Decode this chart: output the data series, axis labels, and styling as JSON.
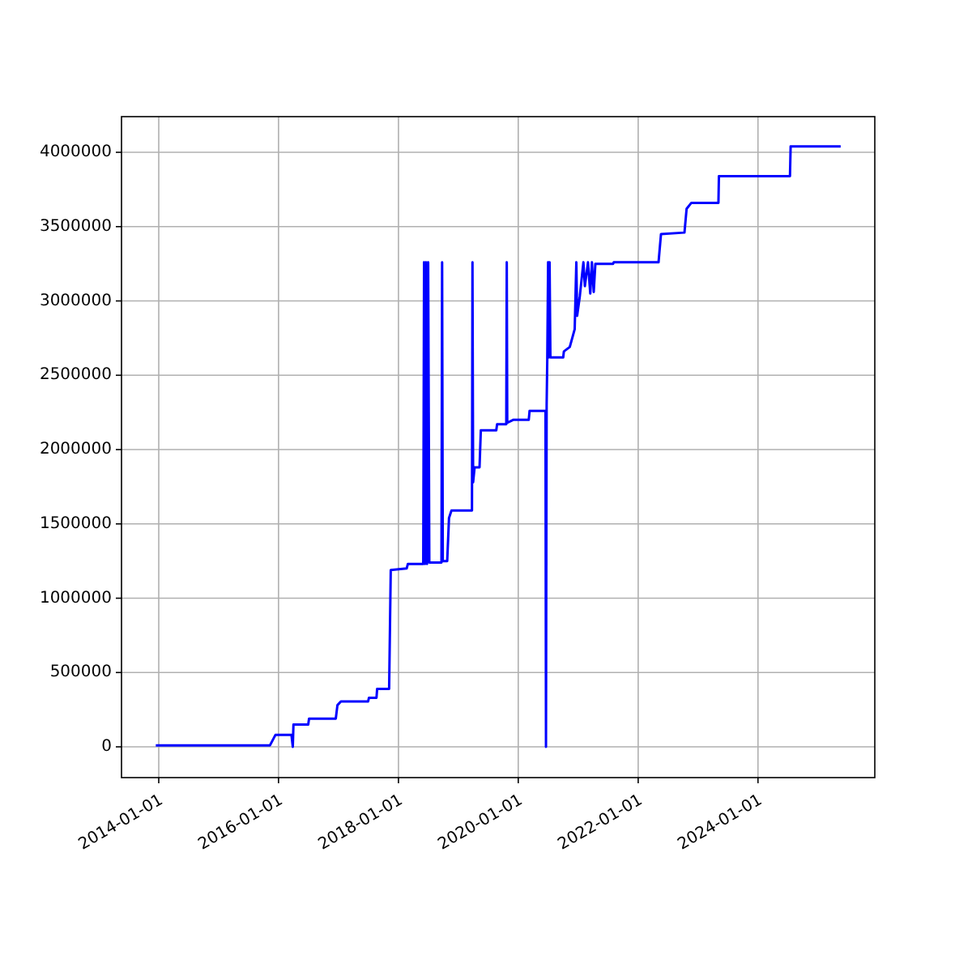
{
  "chart_data": {
    "type": "line",
    "x": [
      "2013-12-14",
      "2015-11-10",
      "2015-12-13",
      "2016-03-20",
      "2016-03-28",
      "2016-04-01",
      "2016-06-30",
      "2016-07-05",
      "2016-12-15",
      "2016-12-25",
      "2017-01-15",
      "2017-06-30",
      "2017-07-05",
      "2017-08-20",
      "2017-08-24",
      "2017-11-05",
      "2017-11-15",
      "2018-02-20",
      "2018-02-27",
      "2018-06-01",
      "2018-06-06",
      "2018-06-12",
      "2018-06-18",
      "2018-06-24",
      "2018-07-01",
      "2018-07-08",
      "2018-09-20",
      "2018-09-24",
      "2018-09-28",
      "2018-10-25",
      "2018-11-05",
      "2018-11-20",
      "2019-03-25",
      "2019-03-28",
      "2019-04-01",
      "2019-04-10",
      "2019-05-10",
      "2019-05-18",
      "2019-08-20",
      "2019-08-25",
      "2019-10-20",
      "2019-10-23",
      "2019-10-26",
      "2019-12-01",
      "2020-03-05",
      "2020-03-10",
      "2020-06-15",
      "2020-06-18",
      "2020-06-22",
      "2020-06-26",
      "2020-07-01",
      "2020-07-05",
      "2020-07-10",
      "2020-07-15",
      "2020-10-01",
      "2020-10-05",
      "2020-11-10",
      "2020-12-10",
      "2020-12-20",
      "2020-12-25",
      "2021-01-10",
      "2021-02-01",
      "2021-02-10",
      "2021-03-01",
      "2021-03-15",
      "2021-03-25",
      "2021-04-05",
      "2021-04-15",
      "2021-08-01",
      "2021-08-05",
      "2022-05-05",
      "2022-05-20",
      "2022-10-10",
      "2022-10-23",
      "2022-11-21",
      "2023-05-05",
      "2023-05-08",
      "2024-07-14",
      "2024-07-18",
      "2025-05-19"
    ],
    "series": [
      {
        "color": "#0000ff",
        "values": [
          10000,
          10000,
          80000,
          80000,
          0,
          150000,
          150000,
          190000,
          190000,
          280000,
          305000,
          305000,
          330000,
          330000,
          390000,
          390000,
          1190000,
          1200000,
          1230000,
          1230000,
          3260000,
          1230000,
          3260000,
          1230000,
          3260000,
          1240000,
          1240000,
          3260000,
          1250000,
          1250000,
          1540000,
          1590000,
          1590000,
          3260000,
          1780000,
          1880000,
          1880000,
          2130000,
          2130000,
          2170000,
          2170000,
          3260000,
          2180000,
          2200000,
          2200000,
          2260000,
          2260000,
          0,
          2300000,
          2620000,
          3260000,
          2620000,
          3260000,
          2620000,
          2620000,
          2660000,
          2690000,
          2810000,
          3260000,
          2900000,
          3030000,
          3260000,
          3100000,
          3260000,
          3050000,
          3260000,
          3060000,
          3250000,
          3250000,
          3260000,
          3260000,
          3450000,
          3460000,
          3620000,
          3660000,
          3660000,
          3840000,
          3840000,
          4040000,
          4040000
        ]
      }
    ],
    "xlim": [
      "2013-05-19",
      "2025-12-13"
    ],
    "xticks": [
      "2014-01-01",
      "2016-01-01",
      "2018-01-01",
      "2020-01-01",
      "2022-01-01",
      "2024-01-01"
    ],
    "ylim": [
      -207000,
      4240000
    ],
    "yticks": [
      0,
      500000,
      1000000,
      1500000,
      2000000,
      2500000,
      3000000,
      3500000,
      4000000
    ],
    "grid": true,
    "marker": "none",
    "line_style": "solid"
  }
}
